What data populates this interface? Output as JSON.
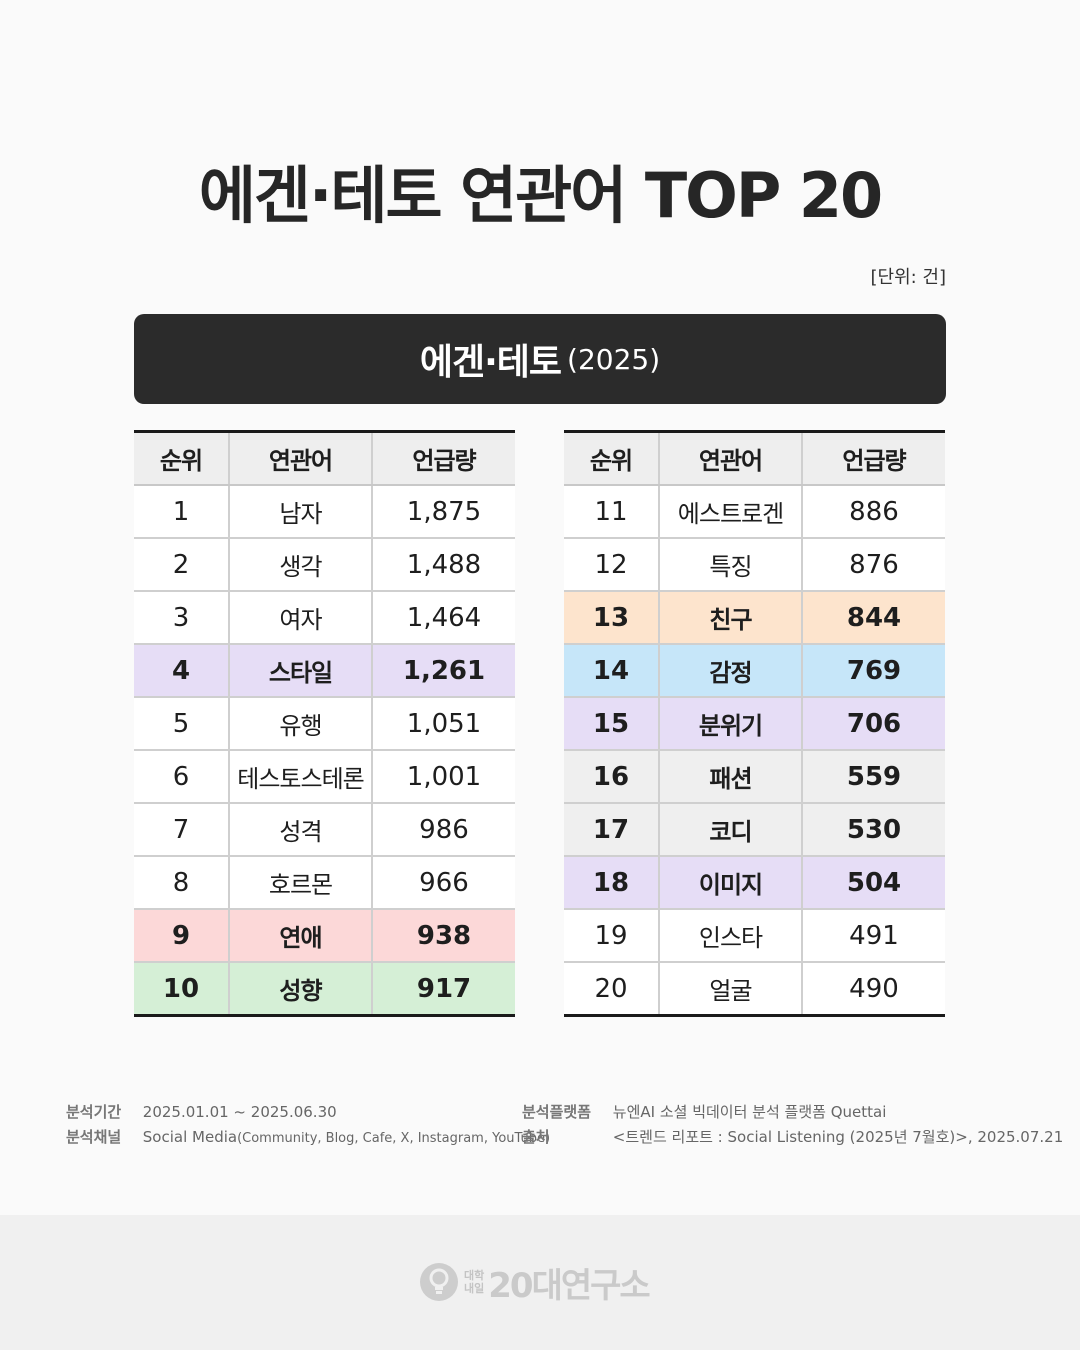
{
  "title": "에겐·테토 연관어 TOP 20",
  "unit_note": "[단위: 건]",
  "header": {
    "main": "에겐·테토",
    "year": "(2025)"
  },
  "table_columns": [
    "순위",
    "연관어",
    "언급량"
  ],
  "highlight_colors": {
    "purple": "#e6ddf6",
    "pink": "#fcd8d8",
    "green": "#d5efd6",
    "orange": "#fde4cd",
    "blue": "#c6e6f9",
    "gray": "#efefef"
  },
  "rows_left": [
    {
      "rank": "1",
      "keyword": "남자",
      "count": "1,875",
      "highlight": ""
    },
    {
      "rank": "2",
      "keyword": "생각",
      "count": "1,488",
      "highlight": ""
    },
    {
      "rank": "3",
      "keyword": "여자",
      "count": "1,464",
      "highlight": ""
    },
    {
      "rank": "4",
      "keyword": "스타일",
      "count": "1,261",
      "highlight": "purple"
    },
    {
      "rank": "5",
      "keyword": "유행",
      "count": "1,051",
      "highlight": ""
    },
    {
      "rank": "6",
      "keyword": "테스토스테론",
      "count": "1,001",
      "highlight": ""
    },
    {
      "rank": "7",
      "keyword": "성격",
      "count": "986",
      "highlight": ""
    },
    {
      "rank": "8",
      "keyword": "호르몬",
      "count": "966",
      "highlight": ""
    },
    {
      "rank": "9",
      "keyword": "연애",
      "count": "938",
      "highlight": "pink"
    },
    {
      "rank": "10",
      "keyword": "성향",
      "count": "917",
      "highlight": "green"
    }
  ],
  "rows_right": [
    {
      "rank": "11",
      "keyword": "에스트로겐",
      "count": "886",
      "highlight": ""
    },
    {
      "rank": "12",
      "keyword": "특징",
      "count": "876",
      "highlight": ""
    },
    {
      "rank": "13",
      "keyword": "친구",
      "count": "844",
      "highlight": "orange"
    },
    {
      "rank": "14",
      "keyword": "감정",
      "count": "769",
      "highlight": "blue"
    },
    {
      "rank": "15",
      "keyword": "분위기",
      "count": "706",
      "highlight": "purple"
    },
    {
      "rank": "16",
      "keyword": "패션",
      "count": "559",
      "highlight": "gray"
    },
    {
      "rank": "17",
      "keyword": "코디",
      "count": "530",
      "highlight": "gray"
    },
    {
      "rank": "18",
      "keyword": "이미지",
      "count": "504",
      "highlight": "purple"
    },
    {
      "rank": "19",
      "keyword": "인스타",
      "count": "491",
      "highlight": ""
    },
    {
      "rank": "20",
      "keyword": "얼굴",
      "count": "490",
      "highlight": ""
    }
  ],
  "footer": {
    "period_label": "분석기간",
    "period_value": "2025.01.01 ~ 2025.06.30",
    "channel_label": "분석채널",
    "channel_main": "Social Media",
    "channel_detail": "(Community, Blog, Cafe, X, Instagram, YouTube)",
    "platform_label": "분석플랫폼",
    "platform_value": "뉴엔AI 소셜 빅데이터 분석 플랫폼 Quettai",
    "source_label": "출처",
    "source_value": "<트렌드 리포트 : Social Listening (2025년 7월호)>, 2025.07.21"
  },
  "brand": {
    "sub_top": "대학",
    "sub_bottom": "내일",
    "name": "20대연구소",
    "icon": "lightbulb-icon"
  }
}
